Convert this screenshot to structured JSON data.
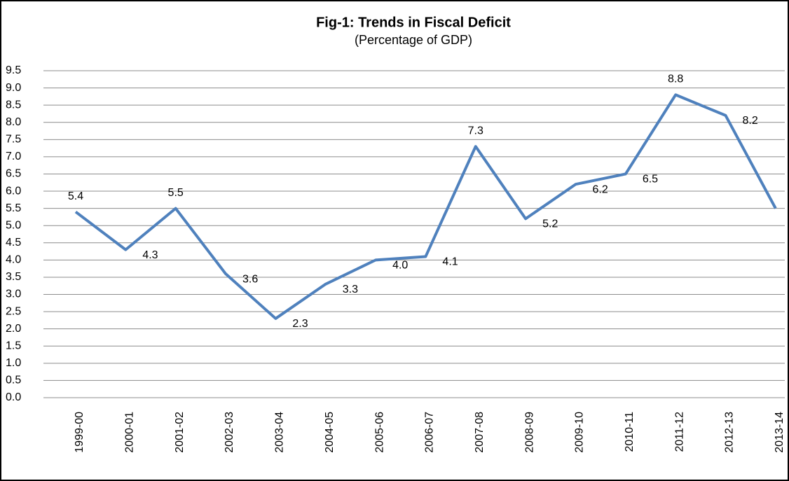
{
  "chart_data": {
    "type": "line",
    "title": "Fig-1: Trends in Fiscal Deficit",
    "subtitle": "(Percentage of GDP)",
    "categories": [
      "1999-00",
      "2000-01",
      "2001-02",
      "2002-03",
      "2003-04",
      "2004-05",
      "2005-06",
      "2006-07",
      "2007-08",
      "2008-09",
      "2009-10",
      "2010-11",
      "2011-12",
      "2012-13",
      "2013-14"
    ],
    "values": [
      5.4,
      4.3,
      5.5,
      3.6,
      2.3,
      3.3,
      4.0,
      4.1,
      7.3,
      5.2,
      6.2,
      6.5,
      8.8,
      8.2,
      5.5
    ],
    "value_labels": [
      "5.4",
      "4.3",
      "5.5",
      "3.6",
      "2.3",
      "3.3",
      "4.0",
      "4.1",
      "7.3",
      "5.2",
      "6.2",
      "6.5",
      "8.8",
      "8.2",
      "5.5"
    ],
    "color": "#4f81bd",
    "ylim": [
      0,
      9.5
    ],
    "yticks": [
      {
        "value": 0,
        "label": "0.0"
      },
      0.5,
      {
        "value": 1,
        "label": "1.0"
      },
      1.5,
      {
        "value": 2,
        "label": "2.0"
      },
      2.5,
      {
        "value": 3,
        "label": "3.0"
      },
      3.5,
      {
        "value": 4,
        "label": "4.0"
      },
      4.5,
      {
        "value": 5,
        "label": "5.0"
      },
      5.5,
      {
        "value": 6,
        "label": "6.0"
      },
      6.5,
      {
        "value": 7,
        "label": "7.0"
      },
      7.5,
      {
        "value": 8,
        "label": "8.0"
      },
      8.5,
      {
        "value": 9,
        "label": "9.0"
      },
      9.5
    ],
    "grid": true
  }
}
